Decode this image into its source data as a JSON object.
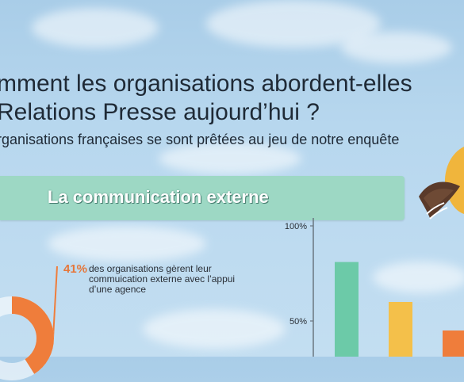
{
  "header": {
    "title_line1": "mment les organisations abordent-elles",
    "title_line2": "Relations Presse aujourd’hui ?",
    "subtitle": "rganisations françaises se sont prêtées au jeu de notre enquête"
  },
  "banner": {
    "label": "La communication externe"
  },
  "stat": {
    "percent": "41%",
    "text": "des organisations gèrent leur commuication externe avec l’appui d’une agence",
    "value_fraction": 0.41
  },
  "colors": {
    "banner": "#9dd8c4",
    "accent_orange": "#ef7d3b",
    "bar_green": "#6ccaa8",
    "bar_yellow": "#f4c04a",
    "bar_orange": "#ef7d3b",
    "title_text": "#1f2a36"
  },
  "chart_data": {
    "type": "bar",
    "categories": [
      "",
      "",
      ""
    ],
    "values": [
      81,
      60,
      45
    ],
    "ylim": [
      0,
      100
    ],
    "ytick_labels": [
      "100%",
      "50%"
    ],
    "yticks": [
      100,
      50
    ],
    "colors": [
      "#6ccaa8",
      "#f4c04a",
      "#ef7d3b"
    ],
    "title": "",
    "xlabel": "",
    "ylabel": "",
    "grid": false
  },
  "decor": {
    "bird": "bird-illustration",
    "clouds": "cloud-background"
  }
}
